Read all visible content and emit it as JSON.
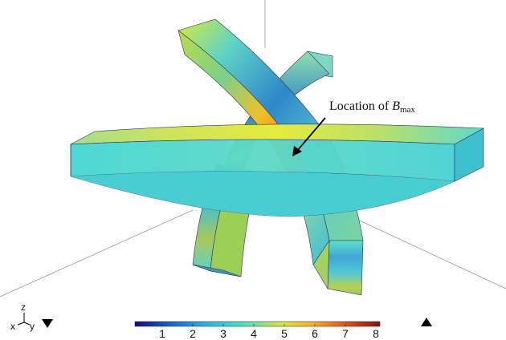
{
  "annotation": {
    "text": "Location of ",
    "symbol": "B",
    "subscript": "max"
  },
  "colorbar": {
    "ticks": [
      "1",
      "2",
      "3",
      "4",
      "5",
      "6",
      "7",
      "8"
    ],
    "colors": [
      "#140a7a",
      "#1a5fd0",
      "#2fb7e6",
      "#4fe0c8",
      "#d9e63a",
      "#f5b52a",
      "#e8581c",
      "#8a0f0f"
    ]
  },
  "triad": {
    "x": "x",
    "y": "y",
    "z": "z"
  },
  "toolbar": {
    "collapse_icon": "triangle-down-icon",
    "expand_icon": "triangle-up-icon"
  }
}
